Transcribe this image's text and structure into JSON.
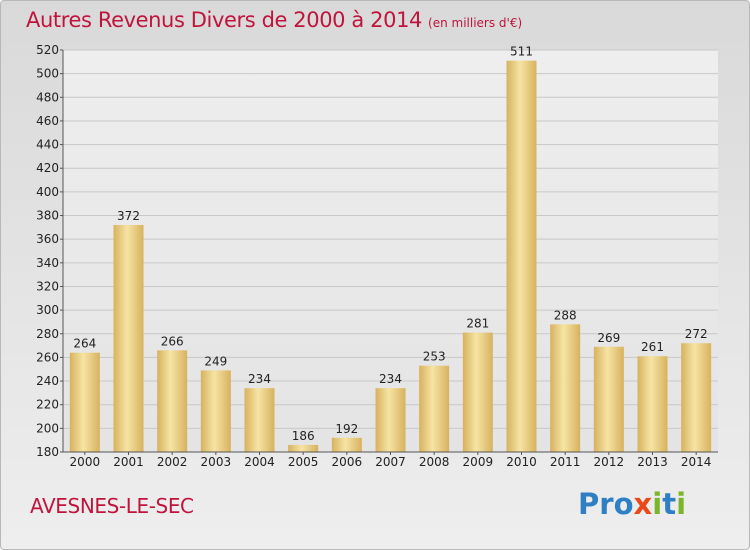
{
  "title": "Autres Revenus Divers de 2000 à 2014",
  "title_unit": "(en milliers d'€)",
  "place": "AVESNES-LE-SEC",
  "logo": {
    "letters": [
      "P",
      "r",
      "o",
      "x",
      "i",
      "t",
      "i"
    ],
    "colors": [
      "#2f7fc4",
      "#2f7fc4",
      "#2f7fc4",
      "#e84a1b",
      "#7bb52a",
      "#2f7fc4",
      "#7bb52a"
    ]
  },
  "colors": {
    "title": "#c0143c",
    "bar_light": "#f6e4a4",
    "bar_dark": "#d7b25e"
  },
  "chart_data": {
    "type": "bar",
    "title": "Autres Revenus Divers de 2000 à 2014",
    "categories": [
      "2000",
      "2001",
      "2002",
      "2003",
      "2004",
      "2005",
      "2006",
      "2007",
      "2008",
      "2009",
      "2010",
      "2011",
      "2012",
      "2013",
      "2014"
    ],
    "values": [
      264,
      372,
      266,
      249,
      234,
      186,
      192,
      234,
      253,
      281,
      511,
      288,
      269,
      261,
      272
    ],
    "ylim": [
      180,
      520
    ],
    "yticks": [
      180,
      200,
      220,
      240,
      260,
      280,
      300,
      320,
      340,
      360,
      380,
      400,
      420,
      440,
      460,
      480,
      500,
      520
    ],
    "grid": true,
    "data_labels": true
  }
}
